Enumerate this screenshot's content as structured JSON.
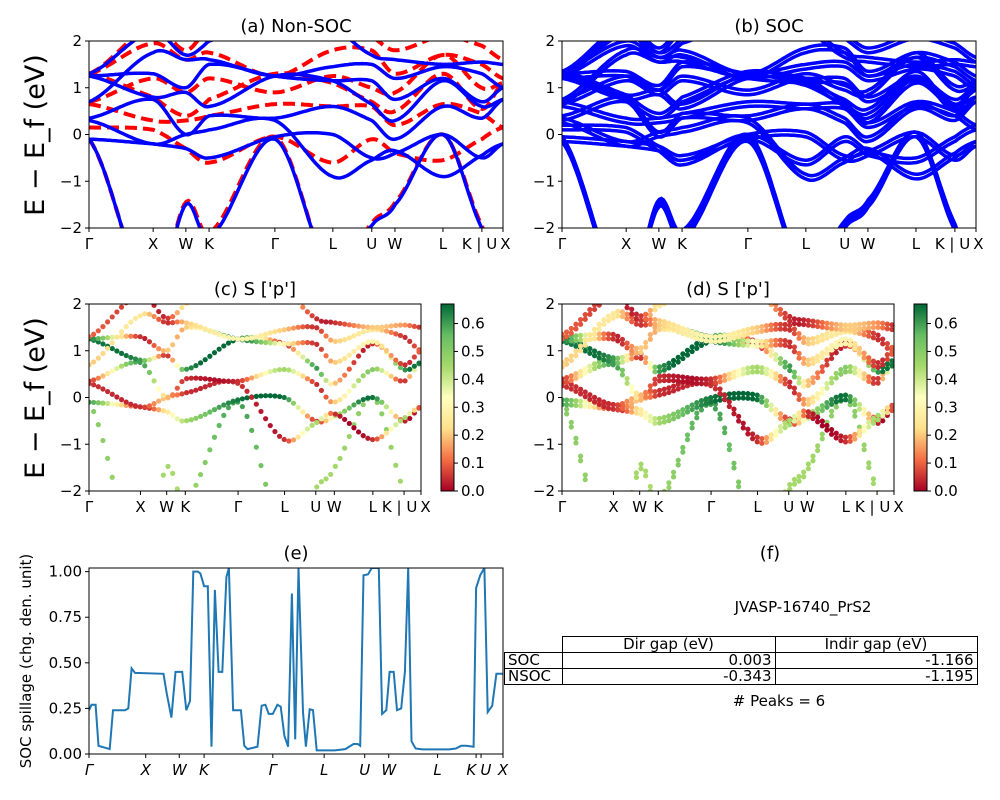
{
  "colors": {
    "nonsoc_band": "#ff0000",
    "soc_band": "#0000ff",
    "spillage_line": "#1f77b4",
    "colormap": [
      "#a50026",
      "#f46d43",
      "#fee08b",
      "#ffffbf",
      "#a6d96a",
      "#66bd63",
      "#006837"
    ]
  },
  "chart_data": [
    {
      "id": "a",
      "type": "line",
      "title": "(a) Non-SOC",
      "ylabel": "E − E_f (eV)",
      "ylim": [
        -2,
        2
      ],
      "yticks": [
        -2,
        -1,
        0,
        1,
        2
      ],
      "kpath": [
        "Γ",
        "X",
        "W",
        "K",
        "Γ",
        "L",
        "U",
        "W",
        "L",
        "K | U",
        "X"
      ],
      "kpos": [
        0,
        15.5,
        23.4,
        29.0,
        44.9,
        58.9,
        68.3,
        73.9,
        85.5,
        94.9,
        100
      ],
      "series": [
        {
          "style": "solid-blue",
          "bands": [
            [
              -0.1,
              -3.5,
              -1.5,
              -2.2,
              -0.1,
              -3.0,
              -1.95,
              -1.5,
              0.0,
              -2.0,
              -3.0
            ],
            [
              -0.1,
              -0.2,
              -0.3,
              -0.5,
              -0.05,
              0.0,
              -0.5,
              -0.4,
              0.0,
              -0.5,
              -0.2
            ],
            [
              0.3,
              -0.2,
              0.0,
              0.1,
              0.3,
              -0.9,
              -0.55,
              -0.35,
              -0.9,
              -0.45,
              -0.2
            ],
            [
              0.35,
              0.75,
              0.0,
              0.4,
              0.35,
              0.6,
              0.3,
              -0.1,
              0.6,
              0.35,
              0.75
            ],
            [
              1.25,
              0.8,
              0.9,
              0.6,
              1.25,
              1.15,
              0.65,
              0.3,
              1.15,
              0.6,
              0.75
            ],
            [
              1.25,
              1.3,
              1.0,
              1.5,
              1.25,
              1.15,
              1.15,
              0.75,
              1.2,
              0.7,
              1.0
            ],
            [
              0.7,
              1.75,
              1.6,
              1.6,
              1.25,
              1.45,
              1.5,
              1.2,
              1.45,
              1.3,
              1.0
            ],
            [
              1.3,
              2.2,
              1.7,
              2.0,
              2.5,
              2.3,
              1.7,
              1.6,
              1.5,
              1.55,
              1.5
            ]
          ]
        },
        {
          "style": "dashed-red",
          "bands": [
            [
              -0.1,
              -3.5,
              -1.45,
              -2.1,
              -0.05,
              -3.0,
              -1.9,
              -1.45,
              0.0,
              -1.95,
              -3.0
            ],
            [
              0.15,
              0.1,
              -0.3,
              -0.6,
              -0.05,
              -0.6,
              -0.1,
              -0.4,
              -0.55,
              -0.1,
              0.15
            ],
            [
              0.65,
              0.3,
              0.3,
              0.4,
              0.65,
              0.6,
              0.6,
              0.2,
              0.65,
              0.45,
              0.15
            ],
            [
              1.3,
              0.8,
              0.4,
              0.75,
              1.3,
              1.1,
              0.7,
              0.5,
              1.3,
              0.55,
              1.1
            ],
            [
              0.7,
              1.2,
              0.9,
              1.2,
              0.9,
              1.25,
              1.0,
              0.9,
              1.7,
              1.0,
              1.1
            ],
            [
              1.3,
              1.95,
              1.6,
              1.75,
              1.25,
              1.8,
              1.8,
              1.3,
              1.7,
              1.5,
              1.2
            ],
            [
              1.3,
              2.3,
              1.8,
              2.3,
              2.5,
              2.4,
              2.1,
              1.8,
              2.1,
              1.9,
              1.6
            ]
          ]
        }
      ]
    },
    {
      "id": "b",
      "type": "line",
      "title": "(b) SOC",
      "ylim": [
        -2,
        2
      ],
      "yticks": [
        -2,
        -1,
        0,
        1,
        2
      ],
      "kpath": [
        "Γ",
        "X",
        "W",
        "K",
        "Γ",
        "L",
        "U",
        "W",
        "L",
        "K | U",
        "X"
      ]
    },
    {
      "id": "c",
      "type": "scatter",
      "title": "(c)  S ['p']",
      "ylabel": "E − E_f (eV)",
      "ylim": [
        -2,
        2
      ],
      "yticks": [
        -2,
        -1,
        0,
        1,
        2
      ],
      "kpath": [
        "Γ",
        "X",
        "W",
        "K",
        "Γ",
        "L",
        "U",
        "W",
        "L",
        "K | U",
        "X"
      ],
      "colorbar": {
        "range": [
          0,
          0.67
        ],
        "ticks": [
          "0.0",
          "0.1",
          "0.2",
          "0.3",
          "0.4",
          "0.5",
          "0.6"
        ]
      },
      "weights": [
        [
          0.5,
          0.45,
          0.45,
          0.45,
          0.6,
          0.45,
          0.45,
          0.45,
          0.5,
          0.45,
          0.45
        ],
        [
          0.6,
          0.05,
          0.25,
          0.45,
          0.65,
          0.65,
          0.05,
          0.4,
          0.65,
          0.05,
          0.05
        ],
        [
          0.05,
          0.05,
          0.2,
          0.05,
          0.05,
          0.05,
          0.45,
          0.05,
          0.05,
          0.45,
          0.05
        ],
        [
          0.05,
          0.6,
          0.2,
          0.05,
          0.05,
          0.45,
          0.05,
          0.2,
          0.5,
          0.05,
          0.6
        ],
        [
          0.65,
          0.6,
          0.05,
          0.6,
          0.65,
          0.05,
          0.6,
          0.2,
          0.05,
          0.6,
          0.65
        ],
        [
          0.65,
          0.05,
          0.2,
          0.2,
          0.65,
          0.3,
          0.05,
          0.2,
          0.3,
          0.05,
          0.1
        ],
        [
          0.2,
          0.25,
          0.05,
          0.2,
          0.3,
          0.2,
          0.05,
          0.2,
          0.25,
          0.05,
          0.1
        ],
        [
          0.1,
          0.05,
          0.05,
          0.25,
          0.2,
          0.25,
          0.05,
          0.05,
          0.2,
          0.15,
          0.05
        ]
      ]
    },
    {
      "id": "d",
      "type": "scatter",
      "title": "(d) S ['p']",
      "ylim": [
        -2,
        2
      ],
      "yticks": [
        -2,
        -1,
        0,
        1,
        2
      ],
      "kpath": [
        "Γ",
        "X",
        "W",
        "K",
        "Γ",
        "L",
        "U",
        "W",
        "L",
        "K | U",
        "X"
      ],
      "colorbar": {
        "range": [
          0,
          0.67
        ],
        "ticks": [
          "0.0",
          "0.1",
          "0.2",
          "0.3",
          "0.4",
          "0.5",
          "0.6"
        ]
      }
    },
    {
      "id": "e",
      "type": "line",
      "title": "(e)",
      "ylabel": "SOC spillage (chg. den. unit)",
      "ylim": [
        0,
        1.02
      ],
      "yticks": [
        "0.00",
        "0.25",
        "0.50",
        "0.75",
        "1.00"
      ],
      "kpath": [
        "Γ",
        "X",
        "W",
        "K",
        "Γ",
        "L",
        "U",
        "W",
        "L",
        "K",
        "U",
        "X"
      ],
      "kpos": [
        0,
        13.7,
        21.8,
        27.8,
        44.4,
        56.8,
        66.6,
        72.4,
        84.2,
        93.5,
        94.7,
        100
      ],
      "x": [
        0,
        0.6,
        1.6,
        2.3,
        5.0,
        5.8,
        8.7,
        9.5,
        10.3,
        11.1,
        18.0,
        18.8,
        19.9,
        20.9,
        22.5,
        23.5,
        24.4,
        25.2,
        26.3,
        26.9,
        27.8,
        28.7,
        29.6,
        30.4,
        31.3,
        32.2,
        33.2,
        33.8,
        34.8,
        36.7,
        37.5,
        38.3,
        40.7,
        41.7,
        42.6,
        43.4,
        44.4,
        45.5,
        46.3,
        47.2,
        48.1,
        49.0,
        49.8,
        50.6,
        51.7,
        52.4,
        53.3,
        54.1,
        55.0,
        59.4,
        61.9,
        63.9,
        64.9,
        65.5,
        66.3,
        67.4,
        68.3,
        70.0,
        70.8,
        71.8,
        72.6,
        73.6,
        74.4,
        75.4,
        76.3,
        77.1,
        77.9,
        78.9,
        80.5,
        87.0,
        88.6,
        89.9,
        91.1,
        92.9,
        93.5,
        94.5,
        95.5,
        96.3,
        97.4,
        98.4,
        100
      ],
      "y": [
        0.24,
        0.27,
        0.27,
        0.045,
        0.027,
        0.24,
        0.24,
        0.25,
        0.47,
        0.445,
        0.44,
        0.33,
        0.2,
        0.45,
        0.45,
        0.24,
        0.29,
        1.0,
        1.0,
        0.99,
        0.92,
        0.92,
        0.04,
        0.9,
        0.45,
        0.45,
        0.97,
        1.02,
        0.24,
        0.24,
        0.045,
        0.027,
        0.04,
        0.265,
        0.27,
        0.22,
        0.22,
        0.27,
        0.26,
        0.1,
        0.04,
        0.88,
        0.08,
        1.02,
        0.23,
        0.04,
        0.245,
        0.24,
        0.02,
        0.02,
        0.027,
        0.055,
        0.055,
        0.045,
        0.98,
        0.985,
        1.02,
        1.02,
        0.22,
        0.24,
        0.45,
        0.45,
        0.24,
        0.25,
        0.45,
        1.02,
        0.07,
        0.03,
        0.025,
        0.025,
        0.03,
        0.045,
        0.045,
        0.04,
        0.91,
        0.98,
        1.02,
        0.23,
        0.265,
        0.44,
        0.44
      ]
    },
    {
      "id": "f",
      "type": "table",
      "title": "(f)",
      "material": "JVASP-16740_PrS2",
      "columns": [
        "Dir gap (eV)",
        "Indir gap (eV)"
      ],
      "rows": [
        {
          "label": "SOC",
          "values": [
            "0.003",
            "-1.166"
          ]
        },
        {
          "label": "NSOC",
          "values": [
            "-0.343",
            "-1.195"
          ]
        }
      ],
      "footer": "# Peaks = 6"
    }
  ]
}
